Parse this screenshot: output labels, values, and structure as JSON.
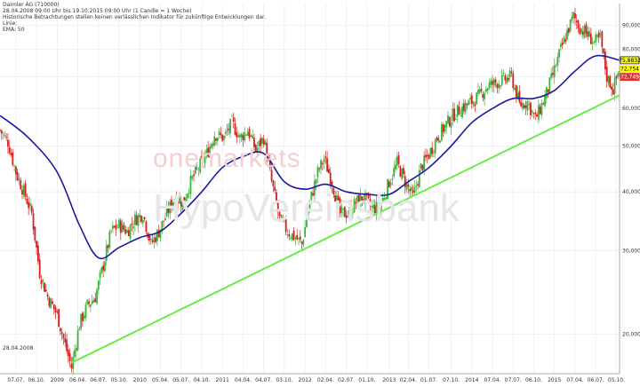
{
  "header": {
    "line1": "Daimler AG (710000)",
    "line2": "28.04.2008 09:00 Uhr bis 19.10.2015 09:00 Uhr (1 Candle = 1 Woche)",
    "line3": "Historische Betrachtungen stellen keinen verlässlichen Indikator für zukünftige Entwicklungen dar.",
    "line4": "Linie:",
    "line5": "EMA: 50"
  },
  "watermark": {
    "brand1": "onemarkets",
    "brand2": "HypoVereinsbank"
  },
  "start_label": "28.04.2008",
  "value_boxes": [
    {
      "text": "75,8832",
      "bg": "#ffff00",
      "border": "#1a1aa0",
      "color": "#000000"
    },
    {
      "text": "72,754",
      "bg": "#ffff00",
      "border": "#ffff00",
      "color": "#000000"
    },
    {
      "text": "72,749",
      "bg": "#e03030",
      "border": "#e03030",
      "color": "#ffffff"
    }
  ],
  "colors": {
    "up": "#3cb43c",
    "down": "#d42020",
    "ema": "#1a1aa0",
    "trend": "#66ee44",
    "grid": "#e8e8e8"
  },
  "chart_data": {
    "type": "candlestick",
    "title": "Daimler AG (710000)",
    "y_scale": "log",
    "ylim": [
      16.5,
      100
    ],
    "y_ticks": [
      {
        "v": 20,
        "label": "20,000"
      },
      {
        "v": 30,
        "label": "30,000"
      },
      {
        "v": 40,
        "label": "40,000"
      },
      {
        "v": 50,
        "label": "50,000"
      },
      {
        "v": 60,
        "label": "60,000"
      },
      {
        "v": 70,
        "label": "70,000"
      },
      {
        "v": 80,
        "label": "80,000"
      },
      {
        "v": 90,
        "label": "90,000"
      }
    ],
    "x_range": [
      "2008-04-28",
      "2015-10-19"
    ],
    "x_ticks": [
      {
        "d": "2008-07-07",
        "label": "07.07."
      },
      {
        "d": "2008-10-06",
        "label": "06.10."
      },
      {
        "d": "2009-01-05",
        "label": "2009"
      },
      {
        "d": "2009-04-06",
        "label": "06.04."
      },
      {
        "d": "2009-07-06",
        "label": "06.07."
      },
      {
        "d": "2009-10-05",
        "label": "05.10."
      },
      {
        "d": "2010-01-04",
        "label": "2010"
      },
      {
        "d": "2010-04-05",
        "label": "05.04."
      },
      {
        "d": "2010-07-05",
        "label": "05.07."
      },
      {
        "d": "2010-10-04",
        "label": "04.10."
      },
      {
        "d": "2011-01-03",
        "label": "2011"
      },
      {
        "d": "2011-04-04",
        "label": "04.04."
      },
      {
        "d": "2011-07-04",
        "label": "04.07."
      },
      {
        "d": "2011-10-03",
        "label": "03.10."
      },
      {
        "d": "2012-01-02",
        "label": "2012"
      },
      {
        "d": "2012-04-02",
        "label": "02.04."
      },
      {
        "d": "2012-07-02",
        "label": "02.07."
      },
      {
        "d": "2012-10-01",
        "label": "01.10."
      },
      {
        "d": "2013-01-07",
        "label": "2013"
      },
      {
        "d": "2013-04-01",
        "label": "02.04."
      },
      {
        "d": "2013-07-01",
        "label": "01.07."
      },
      {
        "d": "2013-10-07",
        "label": "07.10."
      },
      {
        "d": "2014-01-06",
        "label": "2014"
      },
      {
        "d": "2014-04-07",
        "label": "07.04."
      },
      {
        "d": "2014-07-07",
        "label": "07.07."
      },
      {
        "d": "2014-10-06",
        "label": "06.10."
      },
      {
        "d": "2015-01-05",
        "label": "2015"
      },
      {
        "d": "2015-04-06",
        "label": "07.04."
      },
      {
        "d": "2015-07-06",
        "label": "06.07."
      },
      {
        "d": "2015-10-05",
        "label": "05.10."
      }
    ],
    "price_path": [
      [
        "2008-04-28",
        54
      ],
      [
        "2008-06-02",
        51
      ],
      [
        "2008-07-07",
        44
      ],
      [
        "2008-08-11",
        40
      ],
      [
        "2008-09-15",
        36
      ],
      [
        "2008-10-20",
        27
      ],
      [
        "2008-11-24",
        24
      ],
      [
        "2009-01-05",
        22
      ],
      [
        "2009-02-09",
        19
      ],
      [
        "2009-03-09",
        17
      ],
      [
        "2009-04-13",
        21
      ],
      [
        "2009-05-18",
        23
      ],
      [
        "2009-06-22",
        24
      ],
      [
        "2009-07-27",
        28
      ],
      [
        "2009-08-31",
        33
      ],
      [
        "2009-10-05",
        34
      ],
      [
        "2009-11-09",
        33
      ],
      [
        "2009-12-14",
        35
      ],
      [
        "2010-01-18",
        36
      ],
      [
        "2010-02-22",
        31
      ],
      [
        "2010-03-29",
        33
      ],
      [
        "2010-05-03",
        36
      ],
      [
        "2010-06-07",
        39
      ],
      [
        "2010-07-12",
        38
      ],
      [
        "2010-08-16",
        42
      ],
      [
        "2010-09-20",
        45
      ],
      [
        "2010-10-25",
        48
      ],
      [
        "2010-11-29",
        53
      ],
      [
        "2011-01-10",
        52
      ],
      [
        "2011-02-14",
        56
      ],
      [
        "2011-03-21",
        52
      ],
      [
        "2011-04-25",
        54
      ],
      [
        "2011-05-30",
        49
      ],
      [
        "2011-07-04",
        52
      ],
      [
        "2011-08-08",
        42
      ],
      [
        "2011-09-12",
        35
      ],
      [
        "2011-10-17",
        33
      ],
      [
        "2011-11-21",
        32
      ],
      [
        "2011-12-19",
        31
      ],
      [
        "2012-01-23",
        38
      ],
      [
        "2012-02-27",
        44
      ],
      [
        "2012-03-26",
        47
      ],
      [
        "2012-04-30",
        42
      ],
      [
        "2012-06-04",
        36
      ],
      [
        "2012-07-09",
        36
      ],
      [
        "2012-08-13",
        38
      ],
      [
        "2012-09-17",
        39
      ],
      [
        "2012-10-22",
        37
      ],
      [
        "2012-11-26",
        37
      ],
      [
        "2013-01-07",
        42
      ],
      [
        "2013-02-11",
        46
      ],
      [
        "2013-03-18",
        42
      ],
      [
        "2013-04-22",
        39
      ],
      [
        "2013-05-27",
        45
      ],
      [
        "2013-07-01",
        48
      ],
      [
        "2013-08-05",
        52
      ],
      [
        "2013-09-09",
        55
      ],
      [
        "2013-10-14",
        58
      ],
      [
        "2013-11-18",
        60
      ],
      [
        "2014-01-06",
        62
      ],
      [
        "2014-02-10",
        64
      ],
      [
        "2014-03-17",
        67
      ],
      [
        "2014-04-21",
        68
      ],
      [
        "2014-05-26",
        69
      ],
      [
        "2014-06-30",
        70
      ],
      [
        "2014-08-04",
        61
      ],
      [
        "2014-09-08",
        62
      ],
      [
        "2014-10-13",
        57
      ],
      [
        "2014-11-17",
        62
      ],
      [
        "2014-12-22",
        69
      ],
      [
        "2015-01-26",
        78
      ],
      [
        "2015-03-02",
        87
      ],
      [
        "2015-03-30",
        94
      ],
      [
        "2015-04-27",
        89
      ],
      [
        "2015-06-01",
        86
      ],
      [
        "2015-06-29",
        83
      ],
      [
        "2015-07-27",
        84
      ],
      [
        "2015-08-24",
        70
      ],
      [
        "2015-09-21",
        66
      ],
      [
        "2015-10-19",
        73
      ]
    ],
    "ema_path": [
      [
        "2008-04-28",
        58
      ],
      [
        "2008-09-01",
        52
      ],
      [
        "2009-01-05",
        44
      ],
      [
        "2009-04-13",
        34
      ],
      [
        "2009-07-06",
        29
      ],
      [
        "2009-10-05",
        30.5
      ],
      [
        "2010-01-04",
        32
      ],
      [
        "2010-04-05",
        33
      ],
      [
        "2010-07-05",
        36
      ],
      [
        "2010-10-04",
        40
      ],
      [
        "2011-01-03",
        45
      ],
      [
        "2011-04-04",
        47.5
      ],
      [
        "2011-07-04",
        48.2
      ],
      [
        "2011-10-03",
        42
      ],
      [
        "2012-01-02",
        40.5
      ],
      [
        "2012-04-02",
        41.5
      ],
      [
        "2012-07-02",
        40
      ],
      [
        "2012-10-01",
        39.5
      ],
      [
        "2013-01-07",
        39.5
      ],
      [
        "2013-04-01",
        42
      ],
      [
        "2013-07-01",
        45
      ],
      [
        "2013-10-07",
        50
      ],
      [
        "2014-01-06",
        56
      ],
      [
        "2014-04-07",
        60
      ],
      [
        "2014-07-07",
        63
      ],
      [
        "2014-10-06",
        63
      ],
      [
        "2015-01-05",
        65.5
      ],
      [
        "2015-04-06",
        72
      ],
      [
        "2015-07-06",
        77.5
      ],
      [
        "2015-10-19",
        75.88
      ]
    ],
    "trendline": [
      [
        "2009-03-09",
        17.4
      ],
      [
        "2015-10-19",
        64
      ]
    ],
    "last_values": {
      "ema": 75.8832,
      "price_1": 72.754,
      "price_2": 72.749
    }
  }
}
